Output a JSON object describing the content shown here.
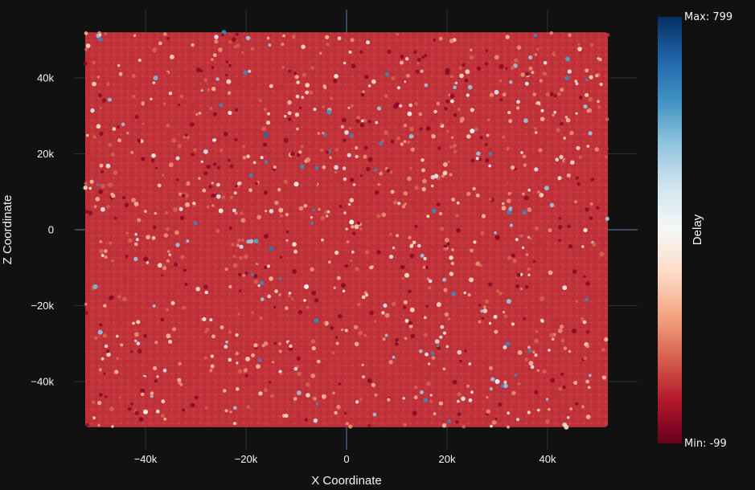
{
  "chart_data": {
    "type": "scatter",
    "xlabel": "X Coordinate",
    "ylabel": "Z Coordinate",
    "xlim": [
      -52000,
      52000
    ],
    "ylim": [
      -52000,
      52000
    ],
    "x_ticks": [
      {
        "value": -40000,
        "label": "−40k"
      },
      {
        "value": -20000,
        "label": "−20k"
      },
      {
        "value": 0,
        "label": "0"
      },
      {
        "value": 20000,
        "label": "20k"
      },
      {
        "value": 40000,
        "label": "40k"
      }
    ],
    "y_ticks": [
      {
        "value": 40000,
        "label": "40k"
      },
      {
        "value": 20000,
        "label": "20k"
      },
      {
        "value": 0,
        "label": "0"
      },
      {
        "value": -20000,
        "label": "−20k"
      },
      {
        "value": -40000,
        "label": "−40k"
      }
    ],
    "grid": true,
    "colorbar": {
      "title": "Delay",
      "min": -99,
      "max": 799,
      "max_label": "Max: 799",
      "min_label": "Min: -99",
      "colorscale": "RdBu"
    },
    "points": [
      {
        "x": 2000,
        "y": 800,
        "v": 210
      },
      {
        "x": -3500,
        "y": 31000,
        "v": 620
      },
      {
        "x": -16000,
        "y": 25000,
        "v": 700
      },
      {
        "x": -15000,
        "y": -5000,
        "v": 680
      },
      {
        "x": -18000,
        "y": -3000,
        "v": 600
      },
      {
        "x": -6000,
        "y": -24000,
        "v": 650
      },
      {
        "x": -38000,
        "y": 40000,
        "v": 560
      },
      {
        "x": 44000,
        "y": 45000,
        "v": 600
      },
      {
        "x": -49000,
        "y": -27000,
        "v": 540
      },
      {
        "x": -50000,
        "y": -15000,
        "v": 560
      },
      {
        "x": 1000,
        "y": 2000,
        "v": 360
      },
      {
        "x": -10000,
        "y": 12000,
        "v": 300
      },
      {
        "x": 25000,
        "y": 26000,
        "v": 400
      },
      {
        "x": -8000,
        "y": -15000,
        "v": 320
      },
      {
        "x": 12000,
        "y": -12000,
        "v": 250
      },
      {
        "x": -25000,
        "y": 5000,
        "v": 280
      },
      {
        "x": 30000,
        "y": -40000,
        "v": 350
      },
      {
        "x": -40000,
        "y": -48000,
        "v": 330
      }
    ]
  }
}
